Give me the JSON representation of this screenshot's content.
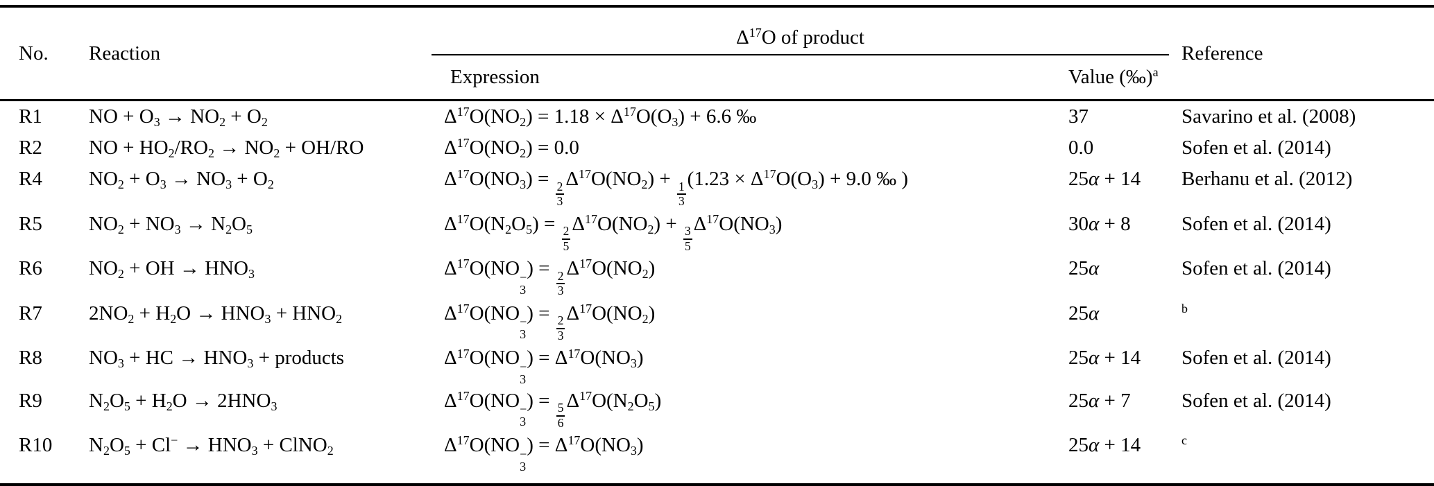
{
  "colors": {
    "text": "#000000",
    "background": "#ffffff",
    "rule": "#000000"
  },
  "table": {
    "headers": {
      "no": "No.",
      "reaction": "Reaction",
      "product_group": "Δ^{17}O of product",
      "expression": "Expression",
      "value": "Value (‰)^{a}",
      "reference": "Reference"
    },
    "rows": [
      {
        "no": "R1",
        "reaction": "NO + O_{3} → NO_{2} + O_{2}",
        "expression": "Δ^{17}O(NO_{2}) = 1.18 × Δ^{17}O(O_{3}) + 6.6 ‰",
        "value": "37",
        "reference": "Savarino et al. (2008)"
      },
      {
        "no": "R2",
        "reaction": "NO + HO_{2}/RO_{2} → NO_{2} + OH/RO",
        "expression": "Δ^{17}O(NO_{2}) = 0.0",
        "value": "0.0",
        "reference": "Sofen et al. (2014)"
      },
      {
        "no": "R4",
        "reaction": "NO_{2} + O_{3} → NO_{3} + O_{2}",
        "expression": "Δ^{17}O(NO_{3}) = @{2/3}Δ^{17}O(NO_{2}) + @{1/3}(1.23 × Δ^{17}O(O_{3}) + 9.0 ‰ )",
        "value": "25*{α} + 14",
        "reference": "Berhanu et al. (2012)"
      },
      {
        "no": "R5",
        "reaction": "NO_{2} + NO_{3} → N_{2}O_{5}",
        "expression": "Δ^{17}O(N_{2}O_{5}) = @{2/5}Δ^{17}O(NO_{2}) + @{3/5}Δ^{17}O(NO_{3})",
        "value": "30*{α} + 8",
        "reference": "Sofen et al. (2014)"
      },
      {
        "no": "R6",
        "reaction": "NO_{2} + OH → HNO_{3}",
        "expression": "Δ^{17}O(NO~{3/−}) = @{2/3}Δ^{17}O(NO_{2})",
        "value": "25*{α}",
        "reference": "Sofen et al. (2014)"
      },
      {
        "no": "R7",
        "reaction": "2NO_{2} + H_{2}O → HNO_{3} + HNO_{2}",
        "expression": "Δ^{17}O(NO~{3/−}) = @{2/3}Δ^{17}O(NO_{2})",
        "value": "25*{α}",
        "reference": "^{b}"
      },
      {
        "no": "R8",
        "reaction": "NO_{3} + HC → HNO_{3} +  products",
        "expression": "Δ^{17}O(NO~{3/−}) = Δ^{17}O(NO_{3})",
        "value": "25*{α} + 14",
        "reference": "Sofen et al. (2014)"
      },
      {
        "no": "R9",
        "reaction": "N_{2}O_{5} + H_{2}O → 2HNO_{3}",
        "expression": "Δ^{17}O(NO~{3/−}) = @{5/6}Δ^{17}O(N_{2}O_{5})",
        "value": "25*{α} + 7",
        "reference": "Sofen et al. (2014)"
      },
      {
        "no": "R10",
        "reaction": "N_{2}O_{5} + Cl^{−} → HNO_{3} + ClNO_{2}",
        "expression": "Δ^{17}O(NO~{3/−}) = Δ^{17}O(NO_{3})",
        "value": "25*{α} + 14",
        "reference": "^{c}"
      }
    ]
  }
}
